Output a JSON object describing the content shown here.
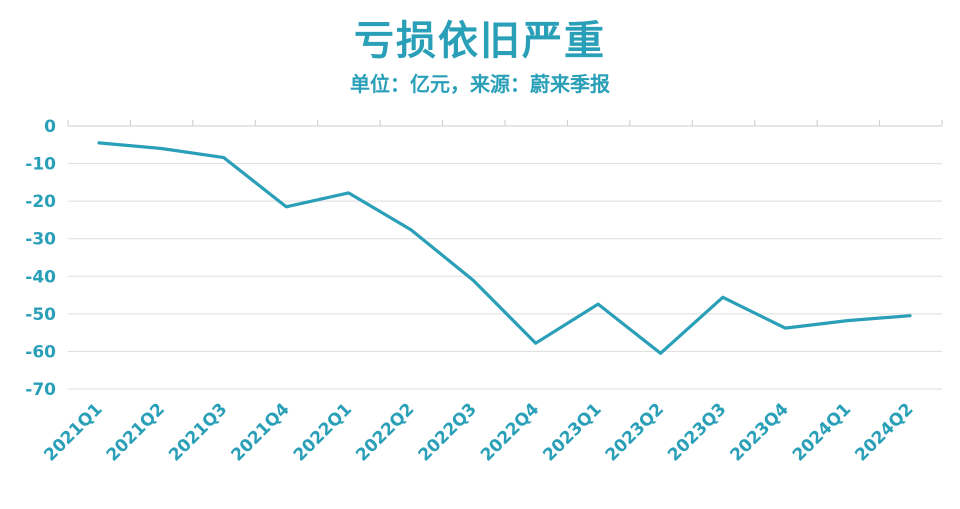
{
  "colors": {
    "accent": "#2a9fb8",
    "grid": "#dddddd"
  },
  "chart_data": {
    "type": "line",
    "title": "亏损依旧严重",
    "subtitle": "单位：亿元，来源：蔚来季报",
    "xlabel": "",
    "ylabel": "",
    "categories": [
      "2021Q1",
      "2021Q2",
      "2021Q3",
      "2021Q4",
      "2022Q1",
      "2022Q2",
      "2022Q3",
      "2022Q4",
      "2023Q1",
      "2023Q2",
      "2023Q3",
      "2023Q4",
      "2024Q1",
      "2024Q2"
    ],
    "values": [
      -4.5,
      -6.0,
      -8.4,
      -21.5,
      -17.8,
      -27.6,
      -41.1,
      -57.8,
      -47.4,
      -60.5,
      -45.6,
      -53.8,
      -51.8,
      -50.5
    ],
    "yticks": [
      0,
      -10,
      -20,
      -30,
      -40,
      -50,
      -60,
      -70
    ],
    "ylim": [
      -70,
      0
    ],
    "grid": true,
    "legend": "none"
  }
}
